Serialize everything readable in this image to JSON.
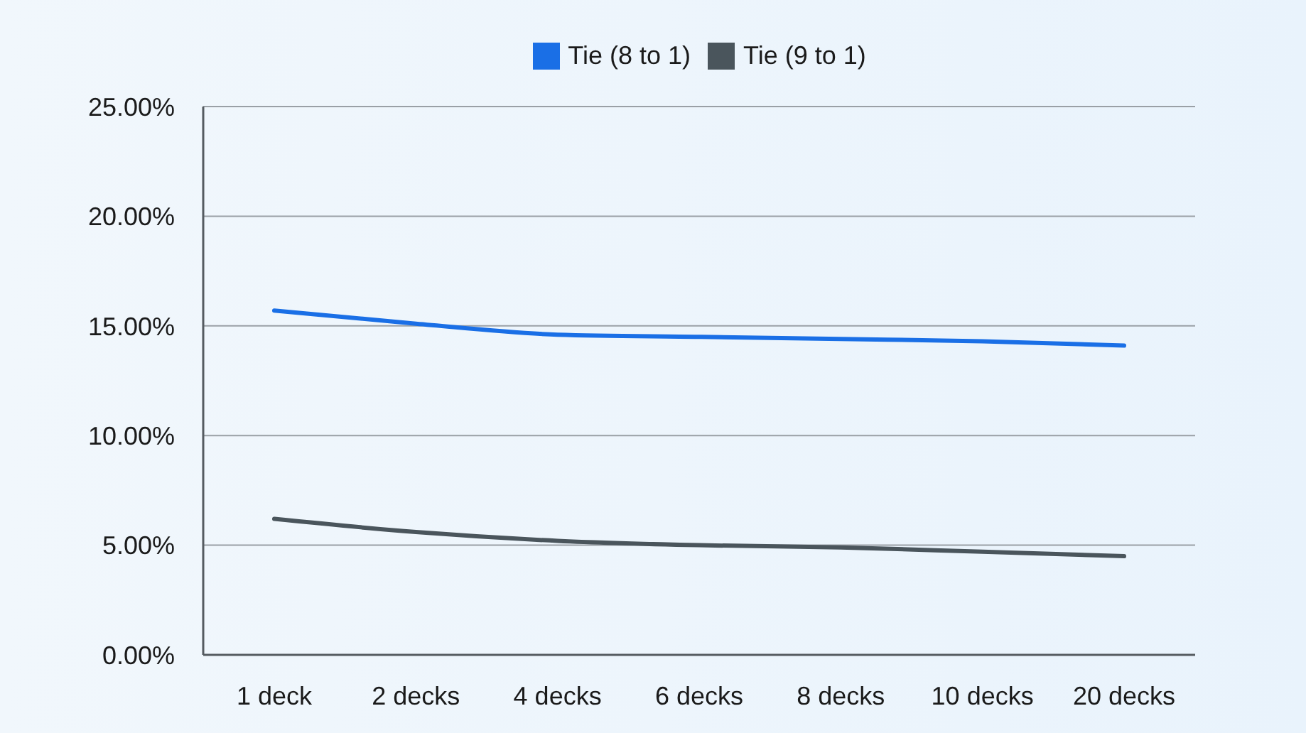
{
  "chart_data": {
    "type": "line",
    "categories": [
      "1 deck",
      "2 decks",
      "4 decks",
      "6 decks",
      "8 decks",
      "10 decks",
      "20 decks"
    ],
    "series": [
      {
        "name": "Tie (8 to 1)",
        "color": "#1a6fe6",
        "values": [
          15.7,
          15.1,
          14.6,
          14.5,
          14.4,
          14.3,
          14.1
        ]
      },
      {
        "name": "Tie (9 to 1)",
        "color": "#4a555c",
        "values": [
          6.2,
          5.6,
          5.2,
          5.0,
          4.9,
          4.7,
          4.5
        ]
      }
    ],
    "ylim": [
      0,
      25
    ],
    "yticks": [
      {
        "value": 0,
        "label": "0.00%"
      },
      {
        "value": 5,
        "label": "5.00%"
      },
      {
        "value": 10,
        "label": "10.00%"
      },
      {
        "value": 15,
        "label": "15.00%"
      },
      {
        "value": 20,
        "label": "20.00%"
      },
      {
        "value": 25,
        "label": "25.00%"
      }
    ],
    "grid": "y",
    "legend": "top"
  }
}
